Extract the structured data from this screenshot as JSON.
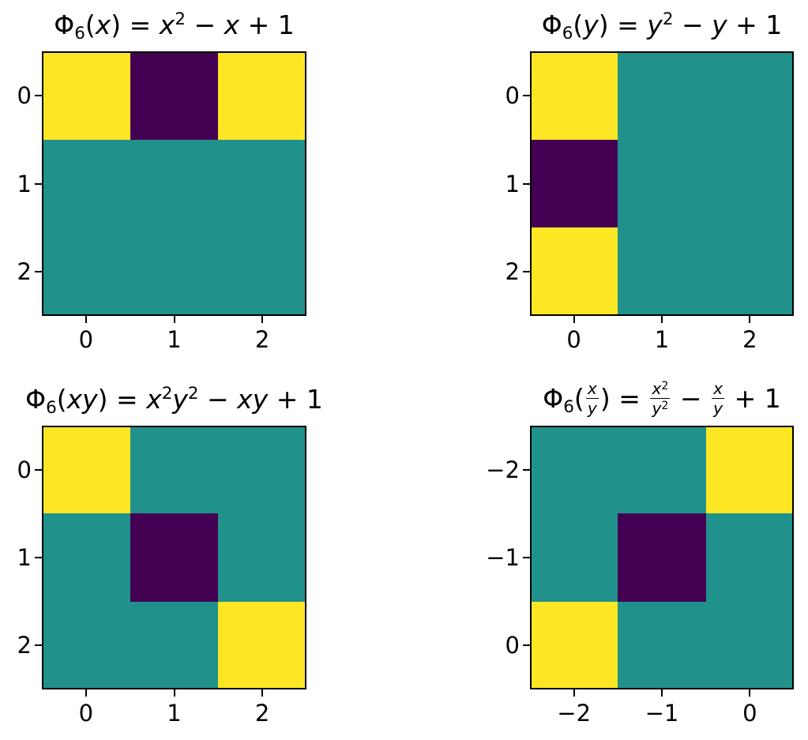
{
  "figure": {
    "background": "#ffffff"
  },
  "palette": {
    "colormap": "viridis",
    "low": "#440154",
    "mid": "#21918c",
    "high": "#fde725",
    "axis": "#000000",
    "text": "#000000"
  },
  "chart_data": [
    {
      "type": "heatmap",
      "title": "Φ₆(x) = x² − x + 1",
      "title_segments": [
        {
          "t": "Φ"
        },
        {
          "t": "6",
          "sub": true
        },
        {
          "t": "("
        },
        {
          "t": "x",
          "it": true
        },
        {
          "t": ") = "
        },
        {
          "t": "x",
          "it": true
        },
        {
          "t": "2",
          "sup": true
        },
        {
          "t": " − "
        },
        {
          "t": "x",
          "it": true
        },
        {
          "t": " + 1"
        }
      ],
      "x_ticks": [
        "0",
        "1",
        "2"
      ],
      "y_ticks": [
        "0",
        "1",
        "2"
      ],
      "xlim": [
        -0.5,
        2.5
      ],
      "ylim": [
        2.5,
        -0.5
      ],
      "colormap": "viridis",
      "value_scale": {
        "low": 0,
        "mid": 0.5,
        "high": 1
      },
      "matrix_levels": [
        [
          "high",
          "low",
          "high"
        ],
        [
          "mid",
          "mid",
          "mid"
        ],
        [
          "mid",
          "mid",
          "mid"
        ]
      ]
    },
    {
      "type": "heatmap",
      "title": "Φ₆(y) = y² − y + 1",
      "title_segments": [
        {
          "t": "Φ"
        },
        {
          "t": "6",
          "sub": true
        },
        {
          "t": "("
        },
        {
          "t": "y",
          "it": true
        },
        {
          "t": ") = "
        },
        {
          "t": "y",
          "it": true
        },
        {
          "t": "2",
          "sup": true
        },
        {
          "t": " − "
        },
        {
          "t": "y",
          "it": true
        },
        {
          "t": " + 1"
        }
      ],
      "x_ticks": [
        "0",
        "1",
        "2"
      ],
      "y_ticks": [
        "0",
        "1",
        "2"
      ],
      "xlim": [
        -0.5,
        2.5
      ],
      "ylim": [
        2.5,
        -0.5
      ],
      "colormap": "viridis",
      "value_scale": {
        "low": 0,
        "mid": 0.5,
        "high": 1
      },
      "matrix_levels": [
        [
          "high",
          "mid",
          "mid"
        ],
        [
          "low",
          "mid",
          "mid"
        ],
        [
          "high",
          "mid",
          "mid"
        ]
      ]
    },
    {
      "type": "heatmap",
      "title": "Φ₆(xy) = x²y² − xy + 1",
      "title_segments": [
        {
          "t": "Φ"
        },
        {
          "t": "6",
          "sub": true
        },
        {
          "t": "("
        },
        {
          "t": "xy",
          "it": true
        },
        {
          "t": ") = "
        },
        {
          "t": "x",
          "it": true
        },
        {
          "t": "2",
          "sup": true
        },
        {
          "t": "y",
          "it": true
        },
        {
          "t": "2",
          "sup": true
        },
        {
          "t": " − "
        },
        {
          "t": "xy",
          "it": true
        },
        {
          "t": " + 1"
        }
      ],
      "x_ticks": [
        "0",
        "1",
        "2"
      ],
      "y_ticks": [
        "0",
        "1",
        "2"
      ],
      "xlim": [
        -0.5,
        2.5
      ],
      "ylim": [
        2.5,
        -0.5
      ],
      "colormap": "viridis",
      "value_scale": {
        "low": 0,
        "mid": 0.5,
        "high": 1
      },
      "matrix_levels": [
        [
          "high",
          "mid",
          "mid"
        ],
        [
          "mid",
          "low",
          "mid"
        ],
        [
          "mid",
          "mid",
          "high"
        ]
      ]
    },
    {
      "type": "heatmap",
      "title": "Φ₆(x/y) = x²/y² − x/y + 1",
      "title_segments": [
        {
          "t": "Φ"
        },
        {
          "t": "6",
          "sub": true
        },
        {
          "t": "("
        },
        {
          "frac": {
            "num": [
              {
                "t": "x",
                "it": true
              }
            ],
            "den": [
              {
                "t": "y",
                "it": true
              }
            ]
          }
        },
        {
          "t": ") = "
        },
        {
          "frac": {
            "num": [
              {
                "t": "x",
                "it": true
              },
              {
                "t": "2",
                "sup": true
              }
            ],
            "den": [
              {
                "t": "y",
                "it": true
              },
              {
                "t": "2",
                "sup": true
              }
            ]
          }
        },
        {
          "t": " − "
        },
        {
          "frac": {
            "num": [
              {
                "t": "x",
                "it": true
              }
            ],
            "den": [
              {
                "t": "y",
                "it": true
              }
            ]
          }
        },
        {
          "t": " + 1"
        }
      ],
      "x_ticks": [
        "−2",
        "−1",
        "0"
      ],
      "y_ticks": [
        "−2",
        "−1",
        "0"
      ],
      "xlim": [
        -2.5,
        0.5
      ],
      "ylim": [
        0.5,
        -2.5
      ],
      "colormap": "viridis",
      "value_scale": {
        "low": 0,
        "mid": 0.5,
        "high": 1
      },
      "matrix_levels": [
        [
          "mid",
          "mid",
          "high"
        ],
        [
          "mid",
          "low",
          "mid"
        ],
        [
          "high",
          "mid",
          "mid"
        ]
      ]
    }
  ]
}
